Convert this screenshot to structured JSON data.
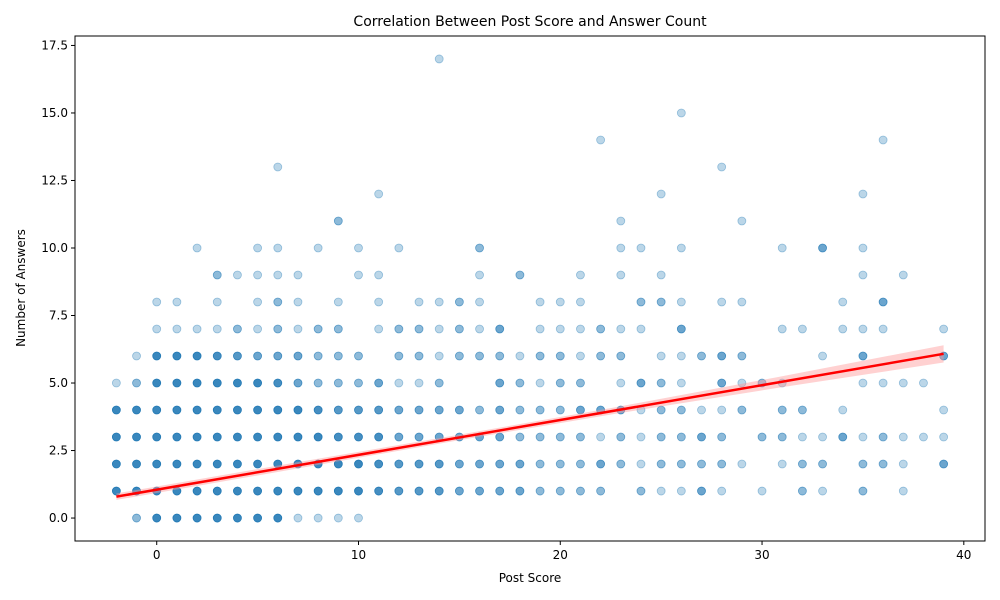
{
  "chart_data": {
    "type": "scatter",
    "title": "Correlation Between Post Score and Answer Count",
    "xlabel": "Post Score",
    "ylabel": "Number of Answers",
    "xlim": [
      -4.05,
      41.05
    ],
    "ylim": [
      -0.85,
      17.85
    ],
    "xticks": [
      0,
      10,
      20,
      30,
      40
    ],
    "yticks": [
      0.0,
      2.5,
      5.0,
      7.5,
      10.0,
      12.5,
      15.0,
      17.5
    ],
    "ytick_labels": [
      "0.0",
      "2.5",
      "5.0",
      "7.5",
      "10.0",
      "12.5",
      "15.0",
      "17.5"
    ],
    "grid": false,
    "point_color": "#1f77b4",
    "line_color": "#ff0000",
    "band_color": "#ff9999",
    "regression": {
      "x_range": [
        -2,
        39
      ],
      "intercept": 1.05,
      "slope": 0.129,
      "ci_halfwidth": [
        0.12,
        0.12,
        0.1,
        0.12,
        0.2,
        0.32
      ]
    },
    "points": [
      [
        -2,
        1,
        40
      ],
      [
        -2,
        2,
        40
      ],
      [
        -2,
        3,
        20
      ],
      [
        -2,
        4,
        10
      ],
      [
        -2,
        5,
        1
      ],
      [
        -1,
        0,
        2
      ],
      [
        -1,
        1,
        30
      ],
      [
        -1,
        2,
        30
      ],
      [
        -1,
        3,
        20
      ],
      [
        -1,
        4,
        8
      ],
      [
        -1,
        5,
        2
      ],
      [
        -1,
        6,
        1
      ],
      [
        0,
        0,
        30
      ],
      [
        0,
        1,
        50
      ],
      [
        0,
        2,
        50
      ],
      [
        0,
        3,
        40
      ],
      [
        0,
        4,
        30
      ],
      [
        0,
        5,
        20
      ],
      [
        0,
        6,
        10
      ],
      [
        0,
        7,
        1
      ],
      [
        0,
        8,
        1
      ],
      [
        1,
        0,
        30
      ],
      [
        1,
        1,
        40
      ],
      [
        1,
        2,
        40
      ],
      [
        1,
        3,
        30
      ],
      [
        1,
        4,
        20
      ],
      [
        1,
        5,
        15
      ],
      [
        1,
        6,
        8
      ],
      [
        1,
        7,
        1
      ],
      [
        1,
        8,
        1
      ],
      [
        2,
        0,
        30
      ],
      [
        2,
        1,
        40
      ],
      [
        2,
        2,
        40
      ],
      [
        2,
        3,
        30
      ],
      [
        2,
        4,
        20
      ],
      [
        2,
        5,
        10
      ],
      [
        2,
        6,
        6
      ],
      [
        2,
        7,
        1
      ],
      [
        2,
        10,
        1
      ],
      [
        3,
        0,
        25
      ],
      [
        3,
        1,
        30
      ],
      [
        3,
        2,
        30
      ],
      [
        3,
        3,
        25
      ],
      [
        3,
        4,
        20
      ],
      [
        3,
        5,
        10
      ],
      [
        3,
        6,
        5
      ],
      [
        3,
        7,
        1
      ],
      [
        3,
        8,
        1
      ],
      [
        3,
        9,
        2
      ],
      [
        4,
        0,
        20
      ],
      [
        4,
        1,
        25
      ],
      [
        4,
        2,
        25
      ],
      [
        4,
        3,
        20
      ],
      [
        4,
        4,
        15
      ],
      [
        4,
        5,
        8
      ],
      [
        4,
        6,
        4
      ],
      [
        4,
        7,
        2
      ],
      [
        4,
        9,
        1
      ],
      [
        5,
        0,
        15
      ],
      [
        5,
        1,
        20
      ],
      [
        5,
        2,
        20
      ],
      [
        5,
        3,
        15
      ],
      [
        5,
        4,
        10
      ],
      [
        5,
        5,
        6
      ],
      [
        5,
        6,
        3
      ],
      [
        5,
        7,
        1
      ],
      [
        5,
        8,
        1
      ],
      [
        5,
        9,
        1
      ],
      [
        5,
        10,
        1
      ],
      [
        6,
        0,
        10
      ],
      [
        6,
        1,
        15
      ],
      [
        6,
        2,
        15
      ],
      [
        6,
        3,
        12
      ],
      [
        6,
        4,
        8
      ],
      [
        6,
        5,
        5
      ],
      [
        6,
        6,
        3
      ],
      [
        6,
        7,
        2
      ],
      [
        6,
        8,
        2
      ],
      [
        6,
        9,
        1
      ],
      [
        6,
        10,
        1
      ],
      [
        6,
        13,
        1
      ],
      [
        7,
        0,
        1
      ],
      [
        7,
        1,
        10
      ],
      [
        7,
        2,
        10
      ],
      [
        7,
        3,
        8
      ],
      [
        7,
        4,
        6
      ],
      [
        7,
        5,
        3
      ],
      [
        7,
        6,
        3
      ],
      [
        7,
        7,
        1
      ],
      [
        7,
        8,
        1
      ],
      [
        7,
        9,
        1
      ],
      [
        8,
        0,
        1
      ],
      [
        8,
        1,
        8
      ],
      [
        8,
        2,
        8
      ],
      [
        8,
        3,
        6
      ],
      [
        8,
        4,
        5
      ],
      [
        8,
        5,
        2
      ],
      [
        8,
        6,
        2
      ],
      [
        8,
        7,
        2
      ],
      [
        8,
        10,
        1
      ],
      [
        9,
        0,
        1
      ],
      [
        9,
        1,
        6
      ],
      [
        9,
        2,
        6
      ],
      [
        9,
        3,
        5
      ],
      [
        9,
        4,
        4
      ],
      [
        9,
        5,
        2
      ],
      [
        9,
        6,
        2
      ],
      [
        9,
        7,
        2
      ],
      [
        9,
        8,
        1
      ],
      [
        9,
        11,
        2
      ],
      [
        10,
        0,
        1
      ],
      [
        10,
        1,
        6
      ],
      [
        10,
        2,
        6
      ],
      [
        10,
        3,
        5
      ],
      [
        10,
        4,
        4
      ],
      [
        10,
        5,
        2
      ],
      [
        10,
        6,
        2
      ],
      [
        10,
        9,
        1
      ],
      [
        10,
        10,
        1
      ],
      [
        11,
        1,
        5
      ],
      [
        11,
        2,
        5
      ],
      [
        11,
        3,
        5
      ],
      [
        11,
        4,
        4
      ],
      [
        11,
        5,
        3
      ],
      [
        11,
        7,
        1
      ],
      [
        11,
        8,
        1
      ],
      [
        11,
        9,
        1
      ],
      [
        11,
        12,
        1
      ],
      [
        12,
        1,
        4
      ],
      [
        12,
        2,
        4
      ],
      [
        12,
        3,
        3
      ],
      [
        12,
        4,
        3
      ],
      [
        12,
        5,
        1
      ],
      [
        12,
        6,
        2
      ],
      [
        12,
        7,
        2
      ],
      [
        12,
        10,
        1
      ],
      [
        13,
        1,
        4
      ],
      [
        13,
        2,
        4
      ],
      [
        13,
        3,
        3
      ],
      [
        13,
        4,
        3
      ],
      [
        13,
        5,
        1
      ],
      [
        13,
        6,
        2
      ],
      [
        13,
        7,
        2
      ],
      [
        13,
        8,
        1
      ],
      [
        14,
        1,
        4
      ],
      [
        14,
        2,
        4
      ],
      [
        14,
        3,
        3
      ],
      [
        14,
        4,
        3
      ],
      [
        14,
        5,
        2
      ],
      [
        14,
        6,
        1
      ],
      [
        14,
        7,
        1
      ],
      [
        14,
        8,
        1
      ],
      [
        14,
        17,
        1
      ],
      [
        15,
        1,
        3
      ],
      [
        15,
        2,
        3
      ],
      [
        15,
        3,
        3
      ],
      [
        15,
        4,
        3
      ],
      [
        15,
        6,
        2
      ],
      [
        15,
        7,
        2
      ],
      [
        15,
        8,
        2
      ],
      [
        16,
        1,
        3
      ],
      [
        16,
        2,
        3
      ],
      [
        16,
        3,
        3
      ],
      [
        16,
        4,
        2
      ],
      [
        16,
        6,
        2
      ],
      [
        16,
        7,
        1
      ],
      [
        16,
        8,
        1
      ],
      [
        16,
        9,
        1
      ],
      [
        16,
        10,
        2
      ],
      [
        17,
        1,
        3
      ],
      [
        17,
        2,
        3
      ],
      [
        17,
        3,
        3
      ],
      [
        17,
        4,
        3
      ],
      [
        17,
        5,
        3
      ],
      [
        17,
        6,
        2
      ],
      [
        17,
        7,
        3
      ],
      [
        18,
        1,
        3
      ],
      [
        18,
        2,
        3
      ],
      [
        18,
        3,
        2
      ],
      [
        18,
        4,
        2
      ],
      [
        18,
        5,
        2
      ],
      [
        18,
        6,
        1
      ],
      [
        18,
        9,
        2
      ],
      [
        19,
        1,
        2
      ],
      [
        19,
        2,
        2
      ],
      [
        19,
        3,
        2
      ],
      [
        19,
        4,
        2
      ],
      [
        19,
        5,
        1
      ],
      [
        19,
        6,
        2
      ],
      [
        19,
        7,
        1
      ],
      [
        19,
        8,
        1
      ],
      [
        20,
        1,
        2
      ],
      [
        20,
        2,
        2
      ],
      [
        20,
        3,
        2
      ],
      [
        20,
        4,
        2
      ],
      [
        20,
        5,
        2
      ],
      [
        20,
        6,
        2
      ],
      [
        20,
        7,
        1
      ],
      [
        20,
        8,
        1
      ],
      [
        21,
        1,
        2
      ],
      [
        21,
        2,
        2
      ],
      [
        21,
        3,
        2
      ],
      [
        21,
        4,
        3
      ],
      [
        21,
        5,
        2
      ],
      [
        21,
        6,
        1
      ],
      [
        21,
        7,
        1
      ],
      [
        21,
        8,
        1
      ],
      [
        21,
        9,
        1
      ],
      [
        22,
        1,
        2
      ],
      [
        22,
        2,
        3
      ],
      [
        22,
        3,
        1
      ],
      [
        22,
        4,
        3
      ],
      [
        22,
        6,
        2
      ],
      [
        22,
        7,
        2
      ],
      [
        22,
        14,
        1
      ],
      [
        23,
        2,
        2
      ],
      [
        23,
        3,
        2
      ],
      [
        23,
        4,
        3
      ],
      [
        23,
        5,
        1
      ],
      [
        23,
        6,
        2
      ],
      [
        23,
        7,
        1
      ],
      [
        23,
        9,
        1
      ],
      [
        23,
        10,
        1
      ],
      [
        23,
        11,
        1
      ],
      [
        24,
        1,
        2
      ],
      [
        24,
        2,
        1
      ],
      [
        24,
        3,
        1
      ],
      [
        24,
        4,
        1
      ],
      [
        24,
        5,
        3
      ],
      [
        24,
        7,
        1
      ],
      [
        24,
        8,
        2
      ],
      [
        24,
        10,
        1
      ],
      [
        25,
        1,
        1
      ],
      [
        25,
        2,
        2
      ],
      [
        25,
        3,
        2
      ],
      [
        25,
        4,
        2
      ],
      [
        25,
        5,
        2
      ],
      [
        25,
        6,
        1
      ],
      [
        25,
        8,
        2
      ],
      [
        25,
        9,
        1
      ],
      [
        25,
        12,
        1
      ],
      [
        26,
        1,
        1
      ],
      [
        26,
        2,
        2
      ],
      [
        26,
        3,
        2
      ],
      [
        26,
        4,
        2
      ],
      [
        26,
        5,
        1
      ],
      [
        26,
        6,
        1
      ],
      [
        26,
        7,
        3
      ],
      [
        26,
        8,
        1
      ],
      [
        26,
        10,
        1
      ],
      [
        26,
        15,
        1
      ],
      [
        27,
        1,
        3
      ],
      [
        27,
        2,
        2
      ],
      [
        27,
        3,
        3
      ],
      [
        27,
        4,
        1
      ],
      [
        27,
        6,
        2
      ],
      [
        28,
        1,
        1
      ],
      [
        28,
        2,
        2
      ],
      [
        28,
        3,
        2
      ],
      [
        28,
        4,
        1
      ],
      [
        28,
        5,
        3
      ],
      [
        28,
        6,
        3
      ],
      [
        28,
        8,
        1
      ],
      [
        28,
        13,
        1
      ],
      [
        29,
        2,
        1
      ],
      [
        29,
        4,
        2
      ],
      [
        29,
        5,
        1
      ],
      [
        29,
        6,
        2
      ],
      [
        29,
        8,
        1
      ],
      [
        29,
        11,
        1
      ],
      [
        30,
        1,
        1
      ],
      [
        30,
        3,
        2
      ],
      [
        30,
        5,
        2
      ],
      [
        31,
        2,
        1
      ],
      [
        31,
        3,
        2
      ],
      [
        31,
        4,
        2
      ],
      [
        31,
        5,
        1
      ],
      [
        31,
        7,
        1
      ],
      [
        31,
        10,
        1
      ],
      [
        32,
        1,
        2
      ],
      [
        32,
        2,
        2
      ],
      [
        32,
        3,
        1
      ],
      [
        32,
        4,
        2
      ],
      [
        32,
        7,
        1
      ],
      [
        33,
        1,
        1
      ],
      [
        33,
        2,
        2
      ],
      [
        33,
        3,
        1
      ],
      [
        33,
        6,
        1
      ],
      [
        33,
        10,
        3
      ],
      [
        34,
        3,
        3
      ],
      [
        34,
        4,
        1
      ],
      [
        34,
        7,
        1
      ],
      [
        34,
        8,
        1
      ],
      [
        35,
        1,
        2
      ],
      [
        35,
        2,
        2
      ],
      [
        35,
        3,
        1
      ],
      [
        35,
        5,
        1
      ],
      [
        35,
        6,
        3
      ],
      [
        35,
        7,
        1
      ],
      [
        35,
        9,
        1
      ],
      [
        35,
        10,
        1
      ],
      [
        35,
        12,
        1
      ],
      [
        36,
        2,
        2
      ],
      [
        36,
        3,
        2
      ],
      [
        36,
        5,
        1
      ],
      [
        36,
        7,
        1
      ],
      [
        36,
        8,
        3
      ],
      [
        36,
        14,
        1
      ],
      [
        37,
        1,
        1
      ],
      [
        37,
        2,
        1
      ],
      [
        37,
        3,
        1
      ],
      [
        37,
        5,
        1
      ],
      [
        37,
        9,
        1
      ],
      [
        38,
        3,
        1
      ],
      [
        38,
        5,
        1
      ],
      [
        39,
        2,
        3
      ],
      [
        39,
        3,
        1
      ],
      [
        39,
        4,
        1
      ],
      [
        39,
        6,
        3
      ],
      [
        39,
        7,
        1
      ]
    ]
  }
}
